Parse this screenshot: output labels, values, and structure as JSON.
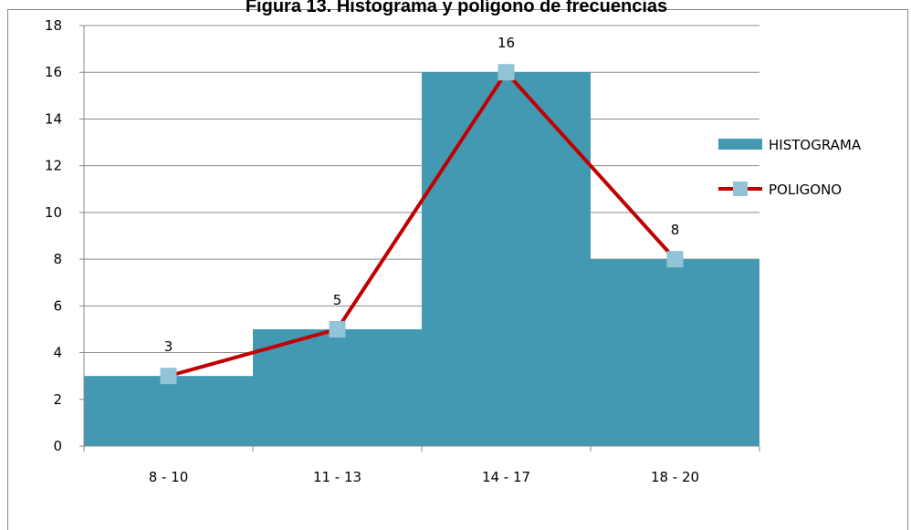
{
  "chart_data": {
    "type": "bar",
    "title": "Figura 13. Histograma y polígono de frecuencias",
    "categories": [
      "8 - 10",
      "11 - 13",
      "14 - 17",
      "18 - 20"
    ],
    "series": [
      {
        "name": "HISTOGRAMA",
        "type": "bar",
        "color": "#4399b2",
        "values": [
          3,
          5,
          16,
          8
        ]
      },
      {
        "name": "POLIGONO",
        "type": "line",
        "color": "#c00000",
        "marker_color": "#93c3d6",
        "values": [
          3,
          5,
          16,
          8
        ]
      }
    ],
    "ylim": [
      0,
      18
    ],
    "yticks": [
      0,
      2,
      4,
      6,
      8,
      10,
      12,
      14,
      16,
      18
    ],
    "grid": true,
    "legend": "right"
  }
}
